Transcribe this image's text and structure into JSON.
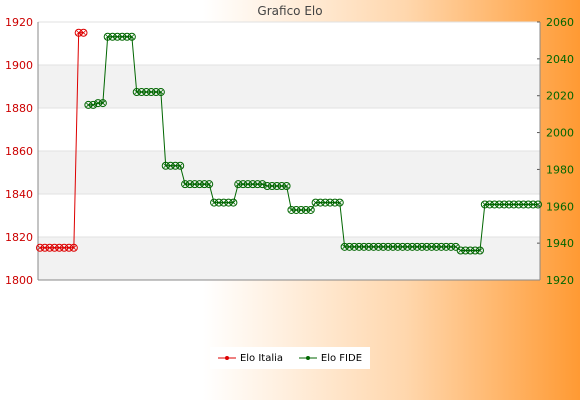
{
  "chart_data": {
    "type": "line",
    "title": "Grafico Elo",
    "legend_position": "bottom",
    "grid": true,
    "y_left": {
      "min": 1800,
      "max": 1920,
      "ticks": [
        "1800",
        "1820",
        "1840",
        "1860",
        "1880",
        "1900",
        "1920"
      ]
    },
    "y_right": {
      "min": 1920,
      "max": 2060,
      "ticks": [
        "1920",
        "1940",
        "1960",
        "1980",
        "2000",
        "2020",
        "2040",
        "2060"
      ]
    },
    "series": [
      {
        "name": "Elo Italia",
        "color": "#dd0000",
        "axis": "left",
        "values": [
          1815,
          1815,
          1815,
          1815,
          1815,
          1815,
          1815,
          1815,
          1915,
          1915
        ]
      },
      {
        "name": "Elo FIDE",
        "color": "#006600",
        "axis": "right",
        "values": [
          2015,
          2015,
          2016,
          2016,
          2052,
          2052,
          2052,
          2052,
          2052,
          2052,
          2022,
          2022,
          2022,
          2022,
          2022,
          2022,
          1982,
          1982,
          1982,
          1982,
          1972,
          1972,
          1972,
          1972,
          1972,
          1972,
          1962,
          1962,
          1962,
          1962,
          1962,
          1972,
          1972,
          1972,
          1972,
          1972,
          1972,
          1971,
          1971,
          1971,
          1971,
          1971,
          1958,
          1958,
          1958,
          1958,
          1958,
          1962,
          1962,
          1962,
          1962,
          1962,
          1962,
          1938,
          1938,
          1938,
          1938,
          1938,
          1938,
          1938,
          1938,
          1938,
          1938,
          1938,
          1938,
          1938,
          1938,
          1938,
          1938,
          1938,
          1938,
          1938,
          1938,
          1938,
          1938,
          1938,
          1938,
          1936,
          1936,
          1936,
          1936,
          1936,
          1961,
          1961,
          1961,
          1961,
          1961,
          1961,
          1961,
          1961,
          1961,
          1961,
          1961,
          1961
        ]
      }
    ]
  }
}
